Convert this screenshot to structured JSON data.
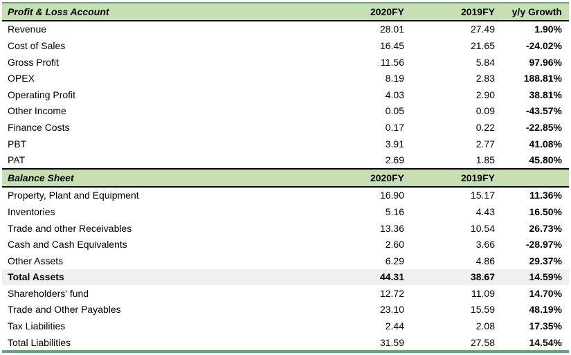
{
  "pnl": {
    "title": "Profit & Loss Account",
    "col1": "2020FY",
    "col2": "2019FY",
    "col3": "y/y Growth",
    "rows": [
      {
        "label": "Revenue",
        "fy2020": "28.01",
        "fy2019": "27.49",
        "growth": "1.90%"
      },
      {
        "label": "Cost of Sales",
        "fy2020": "16.45",
        "fy2019": "21.65",
        "growth": "-24.02%"
      },
      {
        "label": "Gross Profit",
        "fy2020": "11.56",
        "fy2019": "5.84",
        "growth": "97.96%"
      },
      {
        "label": "OPEX",
        "fy2020": "8.19",
        "fy2019": "2.83",
        "growth": "188.81%"
      },
      {
        "label": "Operating Profit",
        "fy2020": "4.03",
        "fy2019": "2.90",
        "growth": "38.81%"
      },
      {
        "label": "Other Income",
        "fy2020": "0.05",
        "fy2019": "0.09",
        "growth": "-43.57%"
      },
      {
        "label": "Finance Costs",
        "fy2020": "0.17",
        "fy2019": "0.22",
        "growth": "-22.85%"
      },
      {
        "label": "PBT",
        "fy2020": "3.91",
        "fy2019": "2.77",
        "growth": "41.08%"
      },
      {
        "label": "PAT",
        "fy2020": "2.69",
        "fy2019": "1.85",
        "growth": "45.80%"
      }
    ]
  },
  "bs": {
    "title": "Balance Sheet",
    "col1": "2020FY",
    "col2": "2019FY",
    "rows": [
      {
        "label": "Property, Plant and Equipment",
        "fy2020": "16.90",
        "fy2019": "15.17",
        "growth": "11.36%"
      },
      {
        "label": "Inventories",
        "fy2020": "5.16",
        "fy2019": "4.43",
        "growth": "16.50%"
      },
      {
        "label": "Trade and other Receivables",
        "fy2020": "13.36",
        "fy2019": "10.54",
        "growth": "26.73%"
      },
      {
        "label": "Cash and Cash Equivalents",
        "fy2020": "2.60",
        "fy2019": "3.66",
        "growth": "-28.97%"
      },
      {
        "label": "Other Assets",
        "fy2020": "6.29",
        "fy2019": "4.86",
        "growth": "29.37%"
      },
      {
        "label": "Total Assets",
        "fy2020": "44.31",
        "fy2019": "38.67",
        "growth": "14.59%"
      },
      {
        "label": "Shareholders' fund",
        "fy2020": "12.72",
        "fy2019": "11.09",
        "growth": "14.70%"
      },
      {
        "label": "Trade and Other Payables",
        "fy2020": "23.10",
        "fy2019": "15.59",
        "growth": "48.19%"
      },
      {
        "label": "Tax Liabilities",
        "fy2020": "2.44",
        "fy2019": "2.08",
        "growth": "17.35%"
      },
      {
        "label": "Total Liabilities",
        "fy2020": "31.59",
        "fy2019": "27.58",
        "growth": "14.54%"
      }
    ]
  }
}
